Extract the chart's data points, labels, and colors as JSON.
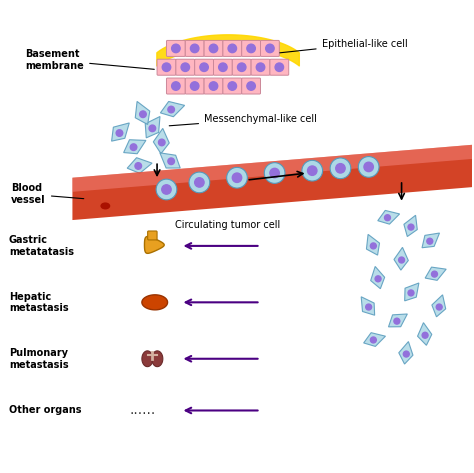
{
  "bg_color": "#ffffff",
  "epithelial_label": "Epithelial-like cell",
  "basement_label": "Basement\nmembrane",
  "mesenchymal_label": "Messenchymal-like cell",
  "blood_vessel_label": "Blood\nvessel",
  "circulating_label": "Circulating tumor cell",
  "cell_color": "#ADD8E6",
  "cell_nucleus_color": "#9370DB",
  "epithelial_cell_color": "#FFB6C1",
  "epithelial_nucleus_color": "#9370DB",
  "basement_membrane_color": "#FFD700",
  "blood_vessel_color": "#CC2200",
  "blood_vessel_light": "#FF9999",
  "arrow_color": "#4B0082",
  "organ_colors": [
    "#E8A020",
    "#CC4400",
    "#8B3A3A"
  ],
  "labels_left": [
    "Gastric\nmetatatasis",
    "Hepatic\nmetastasis",
    "Pulmonary\nmetastasis",
    "Other organs"
  ]
}
